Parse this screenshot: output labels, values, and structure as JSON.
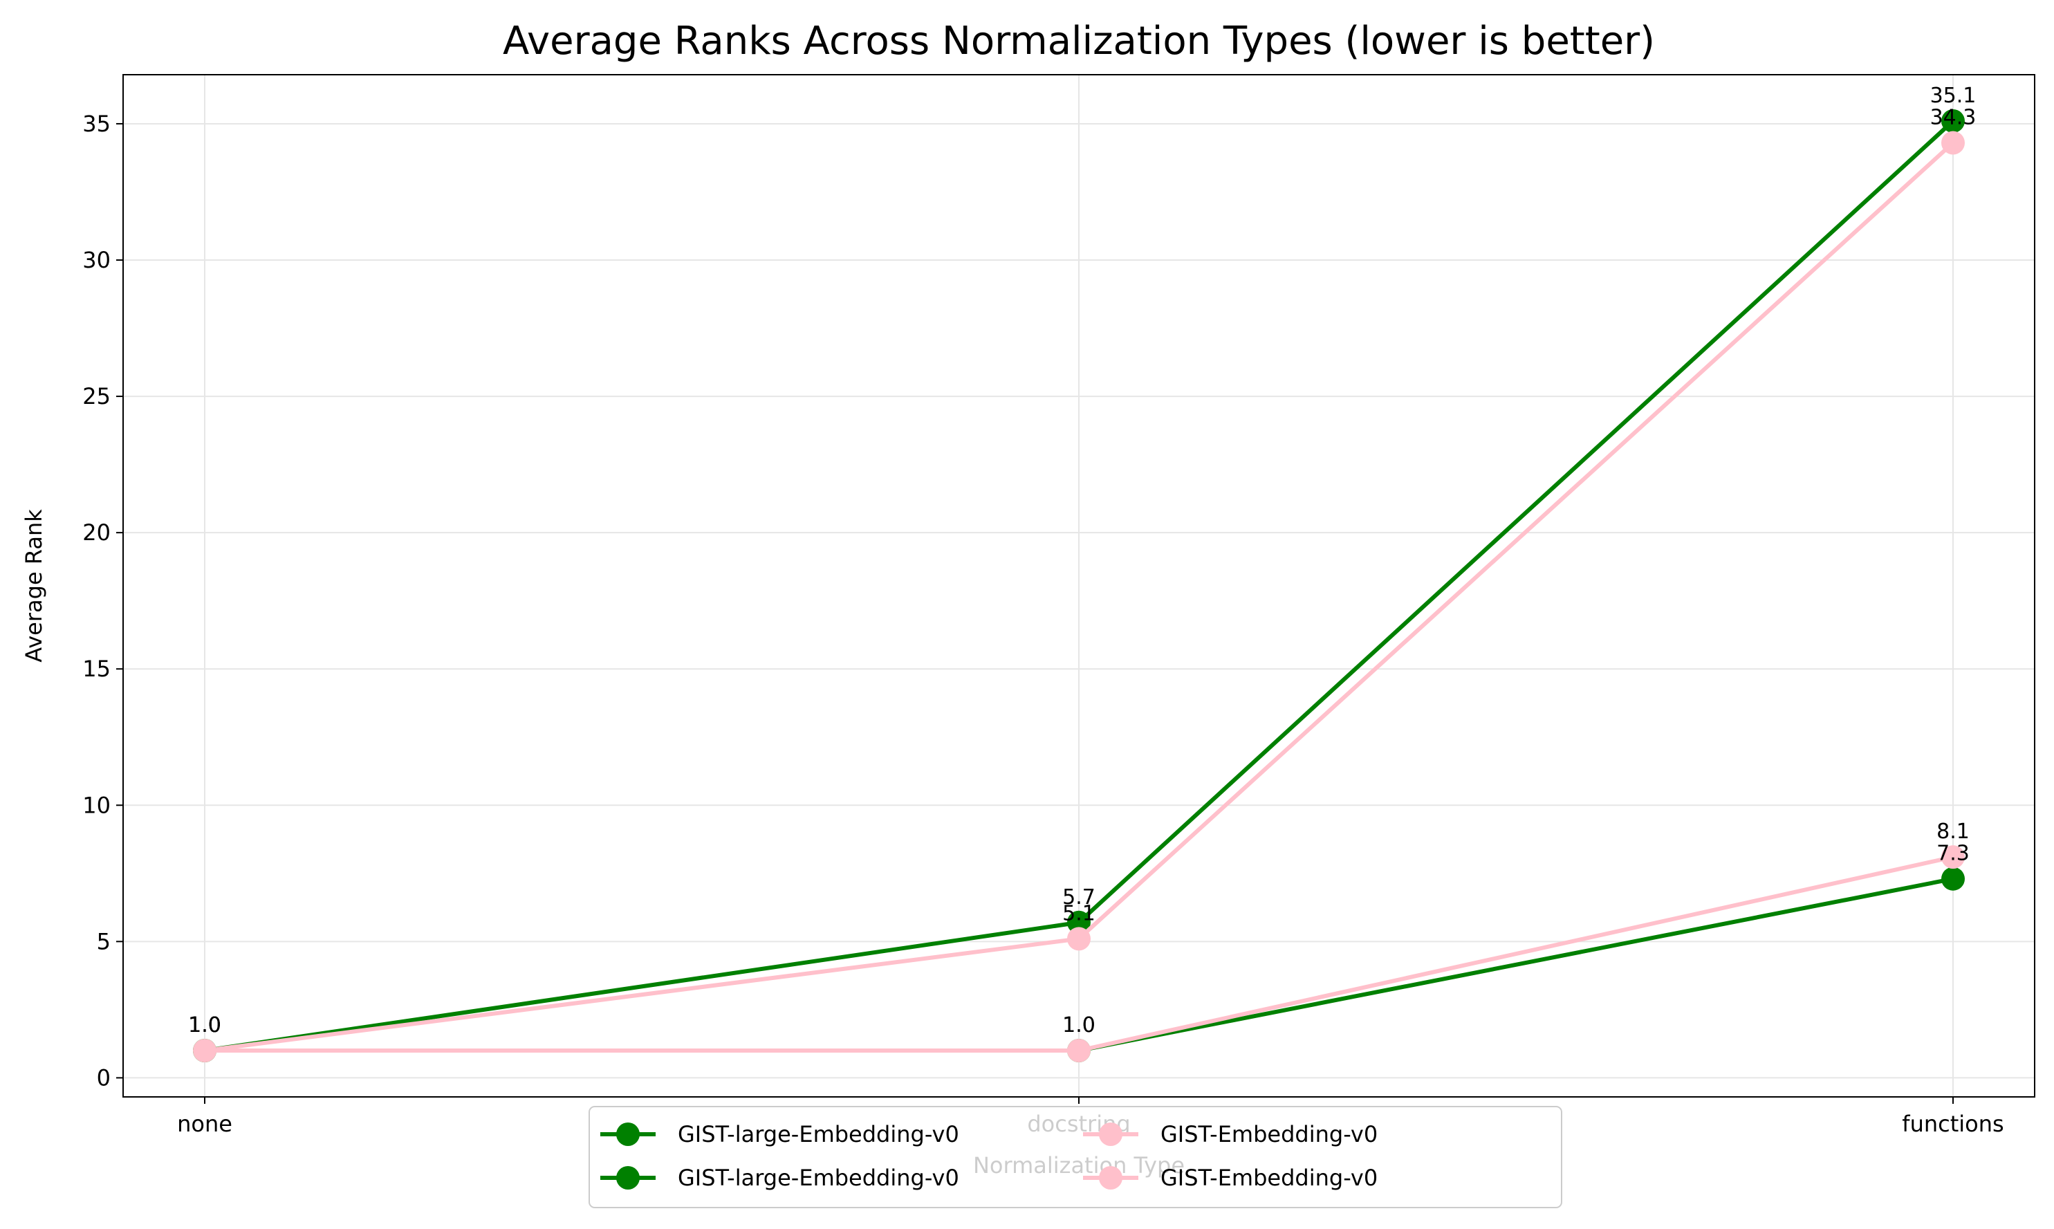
{
  "chart_data": {
    "type": "line",
    "title": "Average Ranks Across Normalization Types (lower is better)",
    "xlabel": "Normalization Type",
    "ylabel": "Average Rank",
    "categories": [
      "none",
      "docstring",
      "functions"
    ],
    "ylim": [
      -0.7,
      36.8
    ],
    "yticks": [
      0,
      5,
      10,
      15,
      20,
      25,
      30,
      35
    ],
    "grid": true,
    "legend_placement": "bottom-center",
    "legend_columns": 2,
    "series": [
      {
        "name": "GIST-large-Embedding-v0",
        "color": "#008000",
        "values": [
          1.0,
          5.7,
          35.1
        ],
        "label_offset": "above"
      },
      {
        "name": "GIST-Embedding-v0",
        "color": "#ffc0cb",
        "values": [
          1.0,
          5.1,
          34.3
        ],
        "label_offset": "above"
      },
      {
        "name": "GIST-large-Embedding-v0",
        "color": "#008000",
        "values": [
          1.0,
          1.0,
          7.3
        ],
        "label_offset": "above"
      },
      {
        "name": "GIST-Embedding-v0",
        "color": "#ffc0cb",
        "values": [
          1.0,
          1.0,
          8.1
        ],
        "label_offset": "above"
      }
    ],
    "data_labels": [
      {
        "series": 0,
        "labels": [
          "1.0",
          "5.7",
          "35.1"
        ]
      },
      {
        "series": 1,
        "labels": [
          "1.0",
          "5.1",
          "34.3"
        ]
      },
      {
        "series": 2,
        "labels": [
          "1.0",
          "1.0",
          "7.3"
        ]
      },
      {
        "series": 3,
        "labels": [
          "1.0",
          "1.0",
          "8.1"
        ]
      }
    ]
  }
}
